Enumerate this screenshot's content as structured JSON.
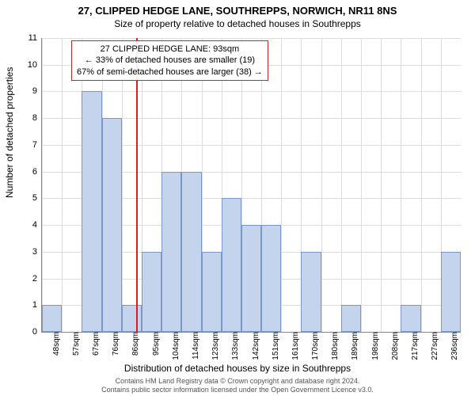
{
  "title": "27, CLIPPED HEDGE LANE, SOUTHREPPS, NORWICH, NR11 8NS",
  "subtitle": "Size of property relative to detached houses in Southrepps",
  "ylabel": "Number of detached properties",
  "xlabel": "Distribution of detached houses by size in Southrepps",
  "chart": {
    "type": "histogram",
    "ylim": [
      0,
      11
    ],
    "ytick_step": 1,
    "bar_fill": "#c5d4ed",
    "bar_border": "#7a97c9",
    "grid_color": "#dddddd",
    "background": "#ffffff",
    "marker_color": "#d42020",
    "marker_x_value": 93,
    "x_start": 48,
    "x_step": 9.5,
    "categories": [
      "48sqm",
      "57sqm",
      "67sqm",
      "76sqm",
      "86sqm",
      "95sqm",
      "104sqm",
      "114sqm",
      "123sqm",
      "133sqm",
      "142sqm",
      "151sqm",
      "161sqm",
      "170sqm",
      "180sqm",
      "189sqm",
      "198sqm",
      "208sqm",
      "217sqm",
      "227sqm",
      "236sqm"
    ],
    "values": [
      1,
      0,
      9,
      8,
      1,
      3,
      6,
      6,
      3,
      5,
      4,
      4,
      0,
      3,
      0,
      1,
      0,
      0,
      1,
      0,
      3
    ]
  },
  "annotation": {
    "line1": "27 CLIPPED HEDGE LANE: 93sqm",
    "line2": "← 33% of detached houses are smaller (19)",
    "line3": "67% of semi-detached houses are larger (38) →"
  },
  "footer": {
    "line1": "Contains HM Land Registry data © Crown copyright and database right 2024.",
    "line2": "Contains public sector information licensed under the Open Government Licence v3.0."
  }
}
